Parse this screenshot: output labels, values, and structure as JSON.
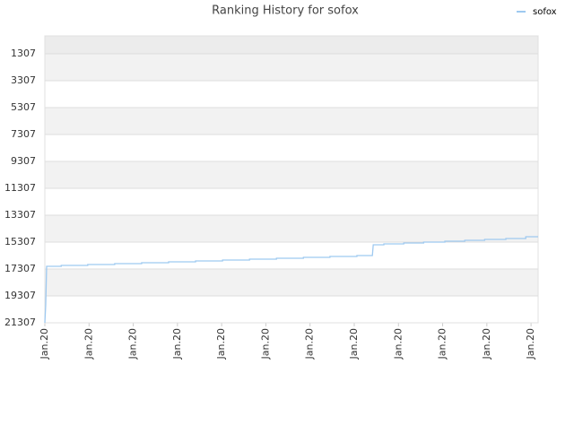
{
  "chart_data": {
    "type": "line",
    "title": "Ranking History for sofox",
    "x": [
      0,
      0.02,
      0.04,
      0.37,
      0.37,
      0.97,
      0.97,
      1.58,
      1.58,
      2.19,
      2.19,
      2.8,
      2.8,
      3.41,
      3.41,
      4.02,
      4.02,
      4.63,
      4.63,
      5.24,
      5.24,
      5.85,
      5.85,
      6.45,
      6.45,
      7.06,
      7.06,
      7.41,
      7.43,
      7.67,
      7.67,
      8.12,
      8.12,
      8.57,
      8.57,
      9.05,
      9.05,
      9.5,
      9.5,
      9.95,
      9.95,
      10.43,
      10.43,
      10.88,
      10.88,
      11.16
    ],
    "series": [
      {
        "name": "sofox",
        "color": "#9ec9f0",
        "values": [
          21307,
          19973,
          17107,
          17107,
          17040,
          17040,
          16973,
          16973,
          16907,
          16907,
          16840,
          16840,
          16773,
          16773,
          16707,
          16707,
          16640,
          16640,
          16573,
          16573,
          16507,
          16507,
          16440,
          16440,
          16373,
          16373,
          16307,
          16307,
          15507,
          15507,
          15440,
          15440,
          15373,
          15373,
          15307,
          15307,
          15240,
          15240,
          15173,
          15173,
          15107,
          15107,
          15040,
          15040,
          14907,
          14907
        ]
      }
    ],
    "xlim": [
      0,
      11.16
    ],
    "xticks": [
      {
        "value": 0,
        "label": "Jan.20"
      },
      {
        "value": 1,
        "label": "Jan.20"
      },
      {
        "value": 2,
        "label": "Jan.20"
      },
      {
        "value": 3,
        "label": "Jan.20"
      },
      {
        "value": 4,
        "label": "Jan.20"
      },
      {
        "value": 5,
        "label": "Jan.20"
      },
      {
        "value": 6,
        "label": "Jan.20"
      },
      {
        "value": 7,
        "label": "Jan.20"
      },
      {
        "value": 8,
        "label": "Jan.20"
      },
      {
        "value": 9,
        "label": "Jan.20"
      },
      {
        "value": 10,
        "label": "Jan.20"
      },
      {
        "value": 11,
        "label": "Jan.20"
      }
    ],
    "ylim": [
      21307,
      -26
    ],
    "yticks": [
      1307,
      3307,
      5307,
      7307,
      9307,
      11307,
      13307,
      15307,
      17307,
      19307,
      21307
    ],
    "grid": true,
    "legend": "top-right"
  }
}
